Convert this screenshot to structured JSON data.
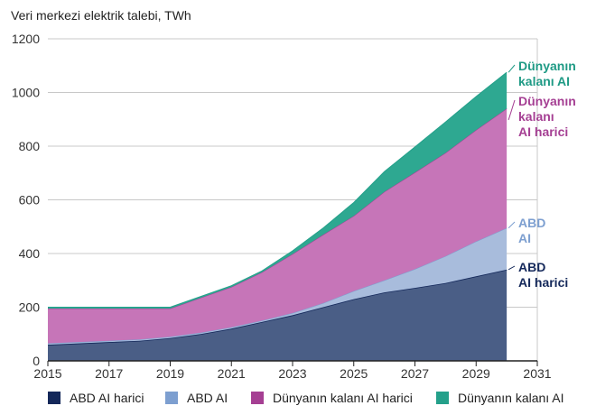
{
  "chart_data": {
    "type": "area",
    "stacked": true,
    "subtitle": "Veri merkezi elektrik talebi, TWh",
    "x": [
      2015,
      2016,
      2017,
      2018,
      2019,
      2020,
      2021,
      2022,
      2023,
      2024,
      2025,
      2026,
      2027,
      2028,
      2029,
      2030
    ],
    "xlim": [
      2015,
      2031
    ],
    "ylim": [
      0,
      1200
    ],
    "x_ticks": [
      "2015",
      "2017",
      "2019",
      "2021",
      "2023",
      "2025",
      "2027",
      "2029",
      "2031"
    ],
    "x_tick_values": [
      2015,
      2017,
      2019,
      2021,
      2023,
      2025,
      2027,
      2029,
      2031
    ],
    "y_ticks": [
      "0",
      "200",
      "400",
      "600",
      "800",
      "1000",
      "1200"
    ],
    "y_tick_values": [
      0,
      200,
      400,
      600,
      800,
      1000,
      1200
    ],
    "grid": true,
    "legend_position": "bottom",
    "series": [
      {
        "name": "ABD AI harici",
        "color": "#4a5e86",
        "legend_color": "#14285a",
        "label_color": "#14285a",
        "end_label": [
          "ABD",
          "AI harici"
        ],
        "values": [
          60,
          65,
          70,
          75,
          85,
          100,
          120,
          145,
          170,
          200,
          230,
          255,
          272,
          290,
          315,
          340
        ]
      },
      {
        "name": "ABD AI",
        "color": "#a8bcdc",
        "legend_color": "#7d9fd0",
        "label_color": "#7d9fd0",
        "end_label": [
          "ABD",
          "AI"
        ],
        "values": [
          5,
          5,
          5,
          5,
          5,
          5,
          5,
          5,
          8,
          15,
          30,
          45,
          70,
          100,
          130,
          155
        ]
      },
      {
        "name": "Dünyanın kalanı AI harici",
        "color": "#c675b8",
        "legend_color": "#a53f93",
        "label_color": "#a53f93",
        "end_label": [
          "Dünyanın",
          "kalanı",
          "AI harici"
        ],
        "values": [
          130,
          125,
          120,
          115,
          105,
          130,
          150,
          180,
          220,
          255,
          280,
          330,
          360,
          385,
          415,
          445
        ]
      },
      {
        "name": "Dünyanın kalanı AI",
        "color": "#2ea891",
        "legend_color": "#24a08a",
        "label_color": "#1f9a85",
        "end_label": [
          "Dünyanın",
          "kalanı AI"
        ],
        "values": [
          5,
          5,
          5,
          5,
          5,
          5,
          5,
          5,
          12,
          25,
          50,
          75,
          95,
          115,
          125,
          135
        ]
      }
    ]
  }
}
